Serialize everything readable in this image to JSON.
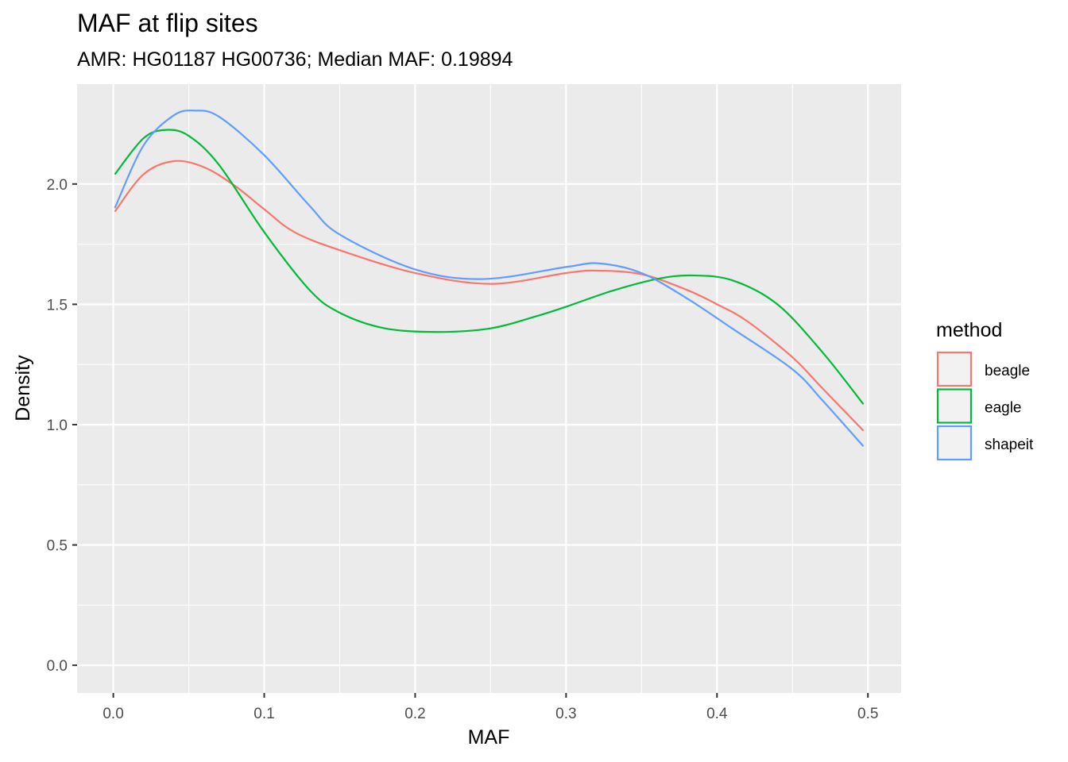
{
  "chart_data": {
    "type": "line",
    "title": "MAF at flip sites",
    "subtitle": "AMR: HG01187 HG00736; Median MAF: 0.19894",
    "xlabel": "MAF",
    "ylabel": "Density",
    "xlim": [
      -0.024,
      0.522
    ],
    "ylim": [
      -0.115,
      2.415
    ],
    "x_ticks": [
      0.0,
      0.1,
      0.2,
      0.3,
      0.4,
      0.5
    ],
    "x_tick_labels": [
      "0.0",
      "0.1",
      "0.2",
      "0.3",
      "0.4",
      "0.5"
    ],
    "y_ticks": [
      0.0,
      0.5,
      1.0,
      1.5,
      2.0
    ],
    "y_tick_labels": [
      "0.0",
      "0.5",
      "1.0",
      "1.5",
      "2.0"
    ],
    "grid": true,
    "legend": {
      "title": "method",
      "position": "right"
    },
    "series": [
      {
        "name": "beagle",
        "color": "#F8766D",
        "x": [
          0.001,
          0.02,
          0.04,
          0.06,
          0.08,
          0.1,
          0.12,
          0.15,
          0.2,
          0.25,
          0.3,
          0.32,
          0.35,
          0.38,
          0.4,
          0.42,
          0.45,
          0.47,
          0.497
        ],
        "y": [
          1.885,
          2.04,
          2.095,
          2.07,
          1.995,
          1.895,
          1.8,
          1.725,
          1.63,
          1.585,
          1.63,
          1.64,
          1.625,
          1.56,
          1.5,
          1.43,
          1.28,
          1.15,
          0.975
        ]
      },
      {
        "name": "eagle",
        "color": "#00BA38",
        "x": [
          0.001,
          0.02,
          0.035,
          0.05,
          0.07,
          0.1,
          0.13,
          0.15,
          0.18,
          0.215,
          0.25,
          0.28,
          0.3,
          0.33,
          0.36,
          0.383,
          0.41,
          0.44,
          0.47,
          0.497
        ],
        "y": [
          2.04,
          2.19,
          2.225,
          2.2,
          2.08,
          1.8,
          1.56,
          1.465,
          1.4,
          1.385,
          1.4,
          1.45,
          1.49,
          1.555,
          1.605,
          1.62,
          1.6,
          1.5,
          1.3,
          1.085
        ]
      },
      {
        "name": "shapeit",
        "color": "#619CFF",
        "x": [
          0.001,
          0.02,
          0.04,
          0.054,
          0.07,
          0.1,
          0.13,
          0.15,
          0.2,
          0.245,
          0.3,
          0.322,
          0.35,
          0.38,
          0.41,
          0.45,
          0.47,
          0.497
        ],
        "y": [
          1.9,
          2.16,
          2.285,
          2.305,
          2.28,
          2.12,
          1.91,
          1.79,
          1.645,
          1.605,
          1.655,
          1.67,
          1.63,
          1.525,
          1.4,
          1.23,
          1.1,
          0.91
        ]
      }
    ]
  }
}
